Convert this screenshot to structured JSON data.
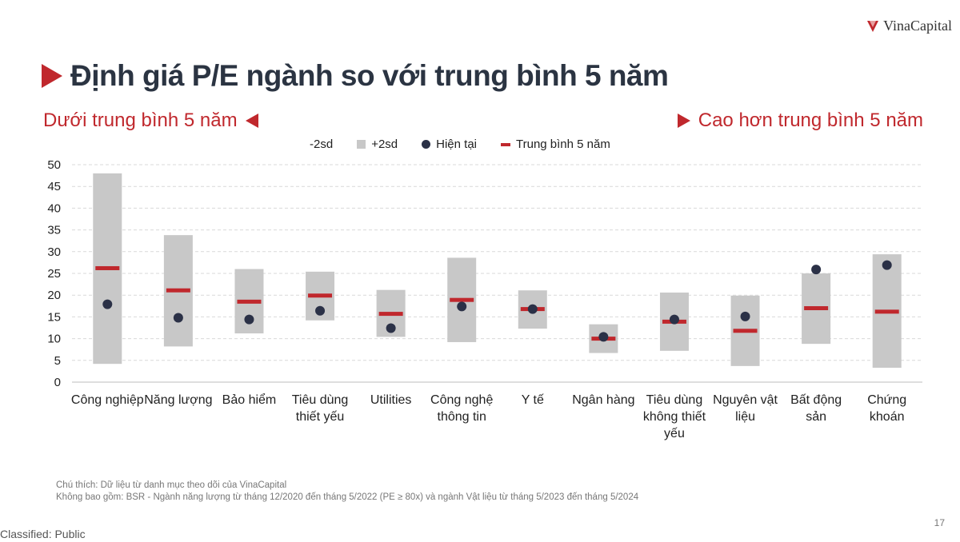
{
  "header": {
    "brand": "VinaCapital",
    "title": "Định giá P/E ngành so với trung bình 5 năm",
    "left_note": "Dưới trung bình 5 năm",
    "right_note": "Cao hơn trung bình 5 năm"
  },
  "legend": {
    "minus2sd": "-2sd",
    "plus2sd": "+2sd",
    "current": "Hiện tại",
    "avg": "Trung bình 5 năm"
  },
  "colors": {
    "accent_red": "#c0282d",
    "band_grey": "#c8c8c8",
    "dot_navy": "#2b3147",
    "title_navy": "#2b3442"
  },
  "chart_data": {
    "type": "range-dot",
    "title": "Định giá P/E ngành so với trung bình 5 năm",
    "ylim": [
      0,
      50
    ],
    "yticks": [
      0,
      5,
      10,
      15,
      20,
      25,
      30,
      35,
      40,
      45,
      50
    ],
    "grid": true,
    "legend_position": "top",
    "categories": [
      "Công nghiệp",
      "Năng lượng",
      "Bảo hiểm",
      "Tiêu dùng thiết yếu",
      "Utilities",
      "Công nghệ thông tin",
      "Y tế",
      "Ngân hàng",
      "Tiêu dùng không thiết yếu",
      "Nguyên vật liệu",
      "Bất động sản",
      "Chứng khoán"
    ],
    "series": [
      {
        "name": "-2sd",
        "values": [
          4.2,
          8.2,
          11.2,
          14.2,
          10.4,
          9.2,
          12.3,
          6.7,
          7.2,
          3.7,
          8.8,
          3.3
        ]
      },
      {
        "name": "+2sd",
        "values": [
          48.0,
          33.8,
          26.0,
          25.4,
          21.2,
          28.6,
          21.1,
          13.3,
          20.6,
          19.9,
          25.0,
          29.4
        ]
      },
      {
        "name": "Hiện tại",
        "values": [
          17.9,
          14.8,
          14.4,
          16.4,
          12.4,
          17.4,
          16.8,
          10.4,
          14.4,
          15.1,
          25.9,
          26.9
        ]
      },
      {
        "name": "Trung bình 5 năm",
        "values": [
          26.2,
          21.1,
          18.5,
          19.9,
          15.7,
          18.9,
          16.8,
          10.0,
          13.9,
          11.8,
          17.0,
          16.2
        ]
      }
    ]
  },
  "xlabels": [
    [
      "Công nghiệp"
    ],
    [
      "Năng lượng"
    ],
    [
      "Bảo hiểm"
    ],
    [
      "Tiêu dùng",
      "thiết yếu"
    ],
    [
      "Utilities"
    ],
    [
      "Công nghệ",
      "thông tin"
    ],
    [
      "Y tế"
    ],
    [
      "Ngân hàng"
    ],
    [
      "Tiêu dùng",
      "không thiết",
      "yếu"
    ],
    [
      "Nguyên vật",
      "liệu"
    ],
    [
      "Bất động",
      "sản"
    ],
    [
      "Chứng",
      "khoán"
    ]
  ],
  "footer": {
    "note1": "Chú thích: Dữ liệu từ danh mục theo dõi của VinaCapital",
    "note2": "Không bao gồm: BSR - Ngành năng lượng từ tháng 12/2020 đến tháng 5/2022 (PE ≥ 80x) và ngành Vật liệu từ tháng 5/2023 đến tháng 5/2024",
    "classification": "Classified: Public",
    "page_number": "17"
  }
}
